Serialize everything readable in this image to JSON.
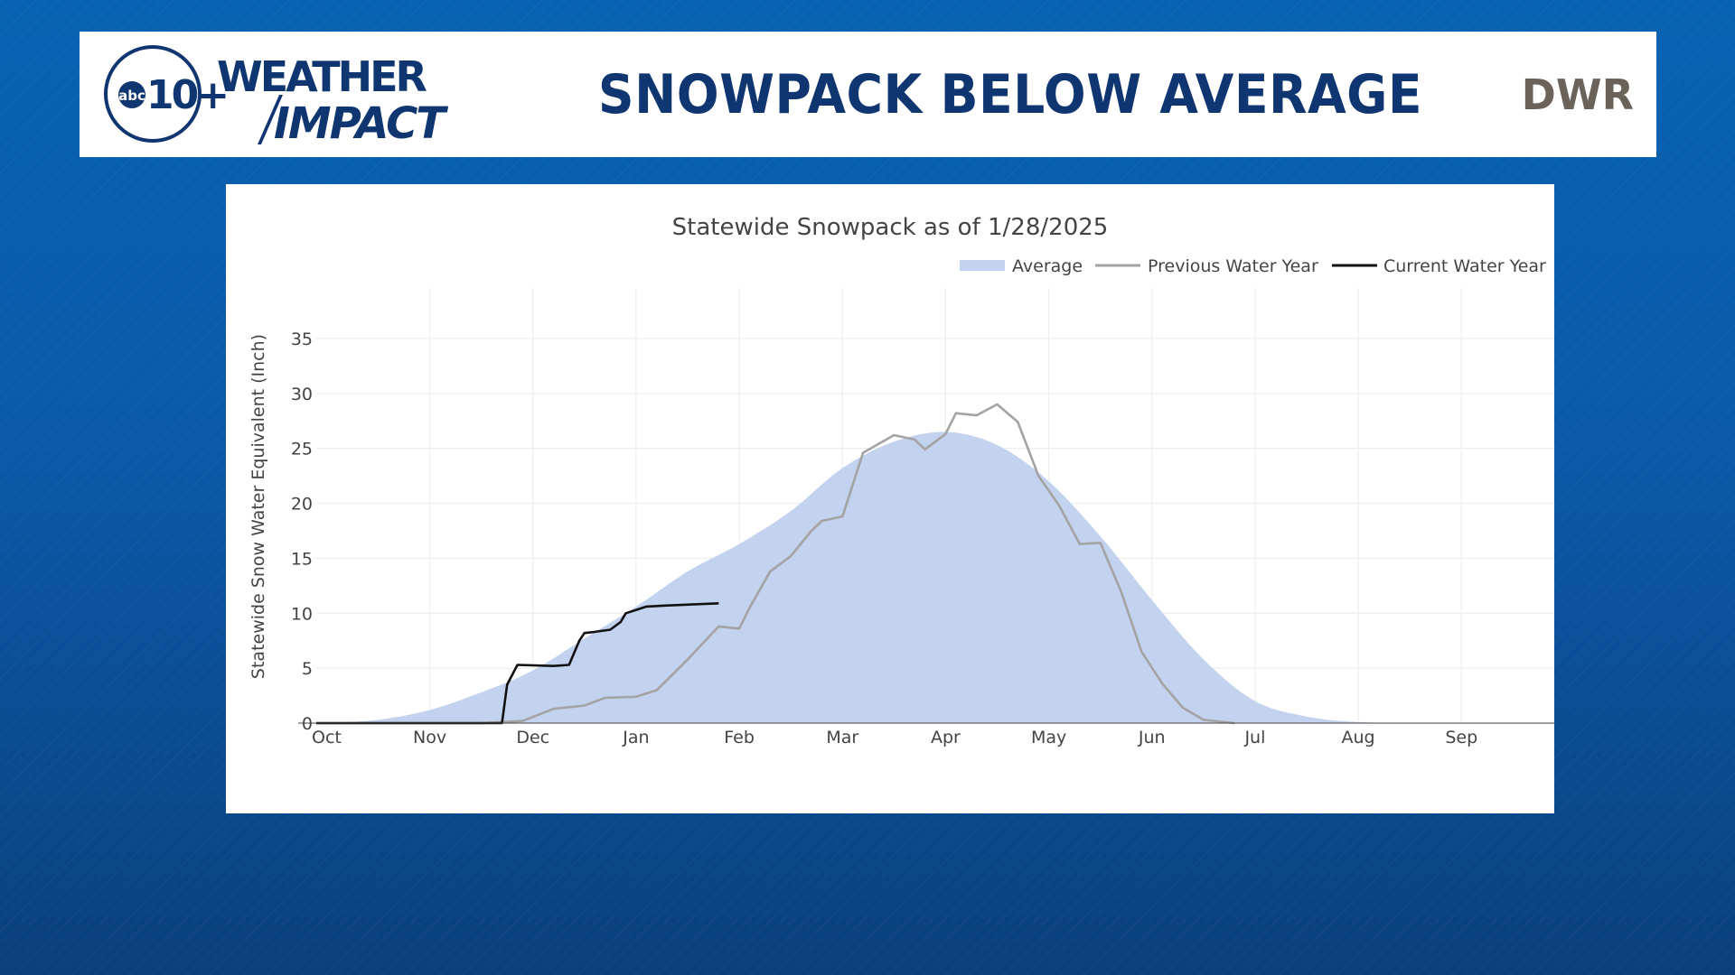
{
  "header": {
    "logo_channel": "abc10+",
    "logo_abc": "abc",
    "logo_ten": "10+",
    "logo_weather": "WEATHER",
    "logo_impact": "IMPACT",
    "headline": "SNOWPACK BELOW AVERAGE",
    "source": "DWR"
  },
  "colors": {
    "brand_navy": "#0f3671",
    "average_fill": "#c3d2ee",
    "previous_line": "#a3a3a3",
    "current_line": "#111111",
    "source_text": "#6b625a"
  },
  "chart_data": {
    "type": "area",
    "title": "Statewide Snowpack as of 1/28/2025",
    "xlabel": "",
    "ylabel": "Statewide Snow Water Equivalent (Inch)",
    "ylim": [
      0,
      40
    ],
    "yticks": [
      0,
      5,
      10,
      15,
      20,
      25,
      30,
      35
    ],
    "xlim": [
      -0.1,
      11.9
    ],
    "month_ticks": [
      "Oct",
      "Nov",
      "Dec",
      "Jan",
      "Feb",
      "Mar",
      "Apr",
      "May",
      "Jun",
      "Jul",
      "Aug",
      "Sep"
    ],
    "grid": true,
    "legend_position": "top-right",
    "legend": [
      "Average",
      "Previous Water Year",
      "Current Water Year"
    ],
    "series": [
      {
        "name": "Average",
        "style": "area",
        "x": [
          -0.1,
          0,
          0.5,
          1.0,
          1.5,
          2.0,
          2.5,
          3.0,
          3.5,
          4.0,
          4.5,
          5.0,
          5.5,
          6.0,
          6.5,
          7.0,
          7.5,
          8.0,
          8.5,
          9.0,
          9.5,
          10.0,
          10.5,
          11.0,
          11.5,
          11.9
        ],
        "values": [
          0,
          0,
          0.3,
          1.2,
          2.8,
          4.8,
          7.7,
          10.6,
          13.8,
          16.3,
          19.3,
          23.2,
          25.6,
          26.5,
          25.3,
          22.0,
          17.0,
          11.2,
          5.8,
          2.0,
          0.6,
          0.1,
          0,
          0,
          0,
          0
        ]
      },
      {
        "name": "Previous Water Year",
        "style": "line",
        "x": [
          -0.1,
          1.5,
          1.9,
          2.2,
          2.5,
          2.7,
          3.0,
          3.2,
          3.5,
          3.8,
          4.0,
          4.1,
          4.3,
          4.5,
          4.7,
          4.8,
          5.0,
          5.2,
          5.5,
          5.7,
          5.8,
          6.0,
          6.1,
          6.3,
          6.5,
          6.7,
          6.9,
          7.1,
          7.3,
          7.5,
          7.7,
          7.9,
          8.1,
          8.3,
          8.5,
          8.8
        ],
        "values": [
          0,
          0,
          0.2,
          1.3,
          1.6,
          2.3,
          2.4,
          3.0,
          5.8,
          8.8,
          8.6,
          10.5,
          13.8,
          15.2,
          17.5,
          18.4,
          18.8,
          24.6,
          26.2,
          25.8,
          24.9,
          26.3,
          28.2,
          28.0,
          29.0,
          27.4,
          22.5,
          19.8,
          16.3,
          16.4,
          12.0,
          6.5,
          3.6,
          1.4,
          0.3,
          0
        ]
      },
      {
        "name": "Current Water Year",
        "style": "line",
        "x": [
          -0.1,
          1.7,
          1.75,
          1.85,
          2.2,
          2.35,
          2.45,
          2.5,
          2.6,
          2.75,
          2.85,
          2.9,
          3.0,
          3.1,
          3.3,
          3.8
        ],
        "values": [
          0,
          0,
          3.5,
          5.3,
          5.2,
          5.3,
          7.5,
          8.2,
          8.3,
          8.5,
          9.2,
          10.0,
          10.3,
          10.6,
          10.7,
          10.9
        ]
      }
    ]
  }
}
